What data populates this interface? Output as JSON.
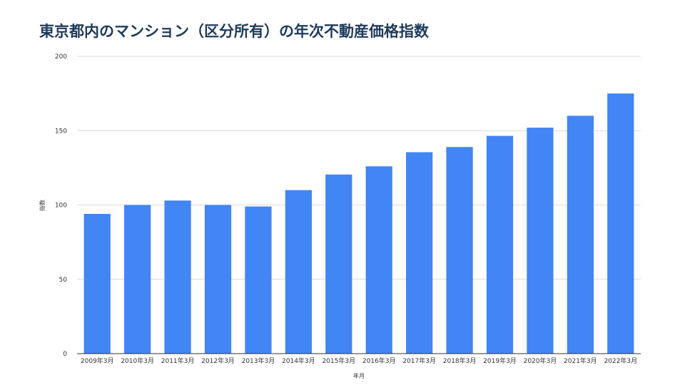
{
  "chart_data": {
    "type": "bar",
    "title": "東京都内のマンション（区分所有）の年次不動産価格指数",
    "xlabel": "年月",
    "ylabel": "指数",
    "ylim": [
      0,
      200
    ],
    "yticks": [
      0,
      50,
      100,
      150,
      200
    ],
    "grid": true,
    "legend": "none",
    "bar_color": "#4285f4",
    "categories": [
      "2009年3月",
      "2010年3月",
      "2011年3月",
      "2012年3月",
      "2013年3月",
      "2014年3月",
      "2015年3月",
      "2016年3月",
      "2017年3月",
      "2018年3月",
      "2019年3月",
      "2020年3月",
      "2021年3月",
      "2022年3月"
    ],
    "values": [
      94,
      100,
      103,
      100,
      99,
      110,
      120.5,
      126,
      135.5,
      139,
      146.5,
      152,
      160,
      175
    ]
  }
}
